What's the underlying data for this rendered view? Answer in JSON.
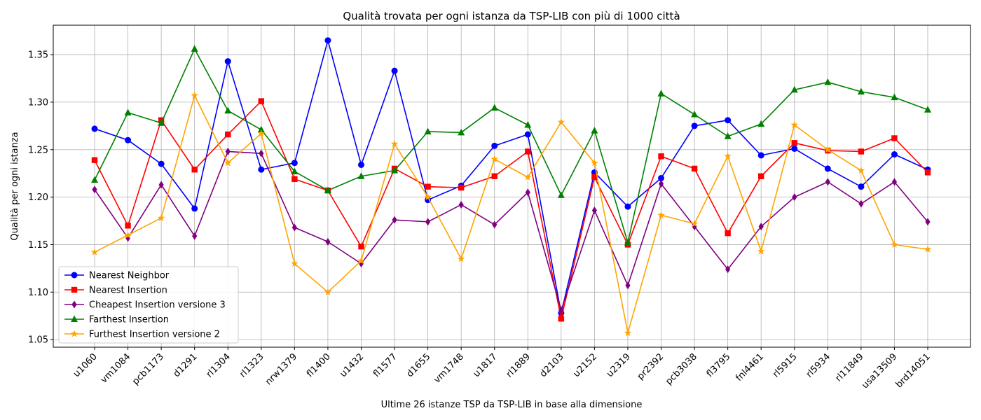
{
  "chart_data": {
    "type": "line",
    "title": "Qualità trovata per ogni istanza da TSP-LIB con più di 1000 città",
    "xlabel": "Ultime 26 istanze TSP da TSP-LIB in base alla dimensione",
    "ylabel": "Qualità per ogni istanza",
    "ylim": [
      1.042,
      1.381
    ],
    "yticks": [
      "1.05",
      "1.10",
      "1.15",
      "1.20",
      "1.25",
      "1.30",
      "1.35"
    ],
    "grid": true,
    "legend_position": "lower-left",
    "categories": [
      "u1060",
      "vm1084",
      "pcb1173",
      "d1291",
      "rl1304",
      "rl1323",
      "nrw1379",
      "fl1400",
      "u1432",
      "fl1577",
      "d1655",
      "vm1748",
      "u1817",
      "rl1889",
      "d2103",
      "u2152",
      "u2319",
      "pr2392",
      "pcb3038",
      "fl3795",
      "fnl4461",
      "rl5915",
      "rl5934",
      "rl11849",
      "usa13509",
      "brd14051"
    ],
    "series": [
      {
        "name": "Nearest Neighbor",
        "color": "#0000ff",
        "marker": "circle",
        "values": [
          1.272,
          1.26,
          1.235,
          1.188,
          1.343,
          1.229,
          1.236,
          1.365,
          1.234,
          1.333,
          1.197,
          1.212,
          1.254,
          1.266,
          1.078,
          1.226,
          1.19,
          1.22,
          1.275,
          1.281,
          1.244,
          1.251,
          1.23,
          1.211,
          1.245,
          1.229
        ]
      },
      {
        "name": "Nearest Insertion",
        "color": "#ff0000",
        "marker": "square",
        "values": [
          1.239,
          1.17,
          1.281,
          1.229,
          1.266,
          1.301,
          1.219,
          1.207,
          1.148,
          1.23,
          1.211,
          1.21,
          1.222,
          1.248,
          1.072,
          1.221,
          1.15,
          1.243,
          1.23,
          1.162,
          1.222,
          1.257,
          1.249,
          1.248,
          1.262,
          1.226
        ]
      },
      {
        "name": "Cheapest Insertion versione 3",
        "color": "#800080",
        "marker": "diamond",
        "values": [
          1.208,
          1.157,
          1.213,
          1.159,
          1.248,
          1.246,
          1.168,
          1.153,
          1.13,
          1.176,
          1.174,
          1.192,
          1.171,
          1.205,
          1.081,
          1.186,
          1.107,
          1.214,
          1.169,
          1.124,
          1.169,
          1.2,
          1.216,
          1.193,
          1.216,
          1.174
        ]
      },
      {
        "name": "Farthest Insertion",
        "color": "#008000",
        "marker": "triangle",
        "values": [
          1.218,
          1.289,
          1.278,
          1.356,
          1.291,
          1.271,
          1.227,
          1.207,
          1.222,
          1.228,
          1.269,
          1.268,
          1.294,
          1.276,
          1.202,
          1.27,
          1.152,
          1.309,
          1.287,
          1.264,
          1.277,
          1.313,
          1.321,
          1.311,
          1.305,
          1.292
        ]
      },
      {
        "name": "Furthest Insertion versione 2",
        "color": "#ffa500",
        "marker": "star",
        "values": [
          1.142,
          1.16,
          1.178,
          1.307,
          1.236,
          1.267,
          1.13,
          1.1,
          1.133,
          1.256,
          1.2,
          1.135,
          1.24,
          1.221,
          1.279,
          1.236,
          1.057,
          1.181,
          1.172,
          1.243,
          1.143,
          1.276,
          1.25,
          1.228,
          1.15,
          1.145
        ]
      }
    ]
  }
}
